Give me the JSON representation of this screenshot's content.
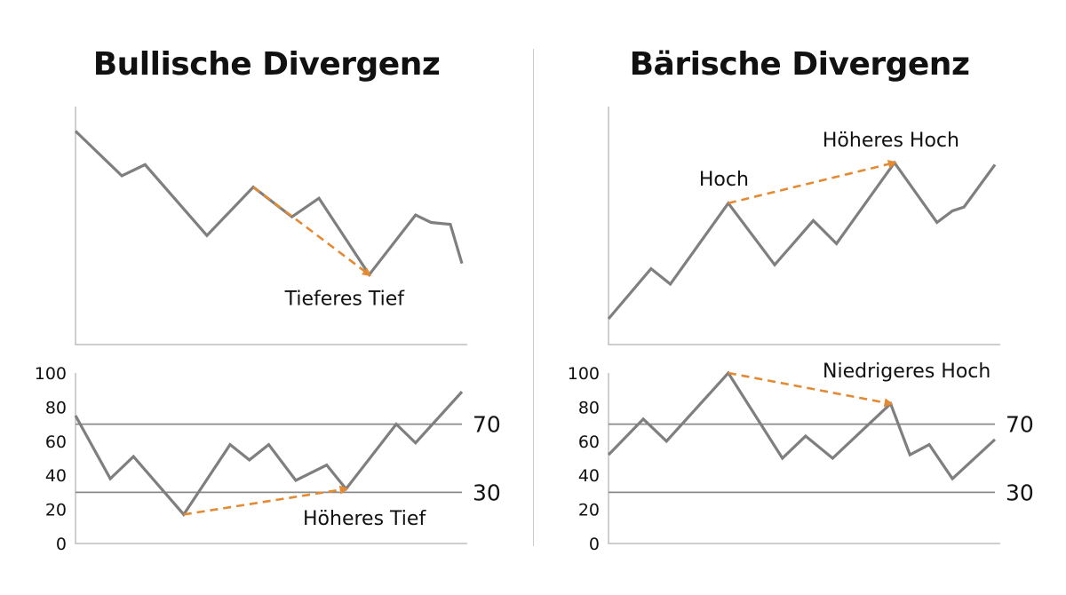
{
  "panels": [
    {
      "title": "Bullische Divergenz",
      "price_chart": {
        "type": "line",
        "values": [
          [
            0,
            94
          ],
          [
            12,
            70
          ],
          [
            18,
            76
          ],
          [
            34,
            38
          ],
          [
            46,
            64
          ],
          [
            56,
            48
          ],
          [
            63,
            58
          ],
          [
            76,
            17
          ],
          [
            88,
            49
          ],
          [
            92,
            45
          ],
          [
            97,
            44
          ],
          [
            100,
            23
          ]
        ],
        "annotation": {
          "label": "Tieferes Tief",
          "from_index": 4,
          "to_index": 7,
          "color": "#e38a33"
        }
      },
      "oscillator_chart": {
        "type": "line",
        "ylim": [
          0,
          100
        ],
        "yticks": [
          "100",
          "80",
          "60",
          "40",
          "20",
          "0"
        ],
        "levels": [
          {
            "value": 70,
            "label": "70"
          },
          {
            "value": 30,
            "label": "30"
          }
        ],
        "values": [
          [
            0,
            75
          ],
          [
            9,
            38
          ],
          [
            15,
            51
          ],
          [
            28,
            17
          ],
          [
            40,
            58
          ],
          [
            45,
            49
          ],
          [
            50,
            58
          ],
          [
            57,
            37
          ],
          [
            65,
            46
          ],
          [
            70,
            32
          ],
          [
            83,
            70
          ],
          [
            88,
            59
          ],
          [
            100,
            89
          ]
        ],
        "annotation": {
          "label": "Höheres Tief",
          "from_index": 3,
          "to_index": 9,
          "color": "#e38a33"
        }
      }
    },
    {
      "title": "Bärische Divergenz",
      "price_chart": {
        "type": "line",
        "values": [
          [
            0,
            6
          ],
          [
            11,
            32
          ],
          [
            16,
            24
          ],
          [
            31,
            66
          ],
          [
            43,
            34
          ],
          [
            53,
            57
          ],
          [
            59,
            45
          ],
          [
            74,
            87
          ],
          [
            85,
            56
          ],
          [
            89,
            62
          ],
          [
            92,
            64
          ],
          [
            100,
            86
          ]
        ],
        "annotation": {
          "label": "Hoch",
          "label2": "Höheres Hoch",
          "from_index": 3,
          "to_index": 7,
          "color": "#e38a33"
        }
      },
      "oscillator_chart": {
        "type": "line",
        "ylim": [
          0,
          100
        ],
        "yticks": [
          "100",
          "80",
          "60",
          "40",
          "20",
          "0"
        ],
        "levels": [
          {
            "value": 70,
            "label": "70"
          },
          {
            "value": 30,
            "label": "30"
          }
        ],
        "values": [
          [
            0,
            52
          ],
          [
            9,
            73
          ],
          [
            15,
            60
          ],
          [
            31,
            100
          ],
          [
            45,
            50
          ],
          [
            51,
            63
          ],
          [
            58,
            50
          ],
          [
            73,
            82
          ],
          [
            78,
            52
          ],
          [
            83,
            58
          ],
          [
            89,
            38
          ],
          [
            100,
            61
          ]
        ],
        "annotation": {
          "label": "Niedrigeres Hoch",
          "from_index": 3,
          "to_index": 7,
          "color": "#e38a33"
        }
      }
    }
  ]
}
